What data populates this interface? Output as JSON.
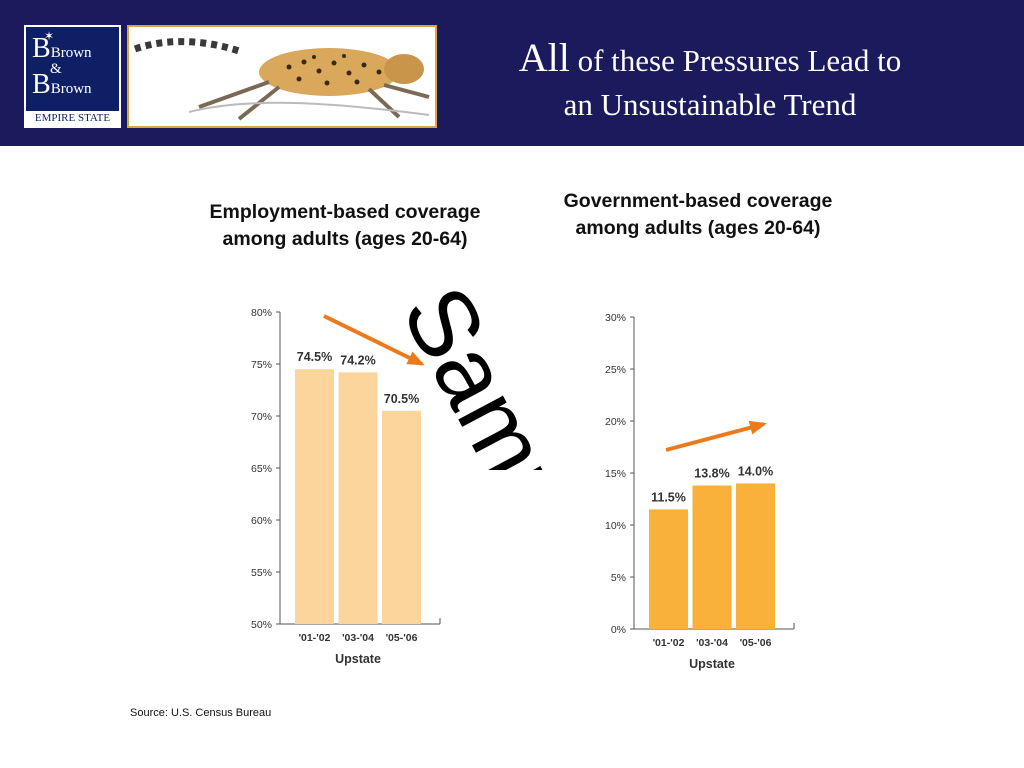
{
  "header": {
    "logo": {
      "line1": "Brown",
      "amp": "&",
      "line2": "Brown",
      "tagline": "EMPIRE STATE"
    },
    "title_part1": "All",
    "title_part2": " of these Pressures Lead to",
    "title_line2": "an Unsustainable Trend"
  },
  "colors": {
    "header_bg": "#1b1a5c",
    "employment_bar": "#fcd59c",
    "government_bar": "#f9b13b",
    "arrow": "#ec7a1c"
  },
  "watermark_text": "Sample",
  "source": "Source: U.S. Census Bureau",
  "chart_data": [
    {
      "type": "bar",
      "title": "Employment-based coverage among adults (ages 20-64)",
      "xlabel": "Upstate",
      "categories": [
        "'01-'02",
        "'03-'04",
        "'05-'06"
      ],
      "values": [
        74.5,
        74.2,
        70.5
      ],
      "data_labels": [
        "74.5%",
        "74.2%",
        "70.5%"
      ],
      "ylim": [
        50,
        80
      ],
      "yticks": [
        50,
        55,
        60,
        65,
        70,
        75,
        80
      ],
      "ytick_labels": [
        "50%",
        "55%",
        "60%",
        "65%",
        "70%",
        "75%",
        "80%"
      ],
      "trend_arrow": "down",
      "grid": false
    },
    {
      "type": "bar",
      "title": "Government-based coverage among adults (ages 20-64)",
      "xlabel": "Upstate",
      "categories": [
        "'01-'02",
        "'03-'04",
        "'05-'06"
      ],
      "values": [
        11.5,
        13.8,
        14.0
      ],
      "data_labels": [
        "11.5%",
        "13.8%",
        "14.0%"
      ],
      "ylim": [
        0,
        30
      ],
      "yticks": [
        0,
        5,
        10,
        15,
        20,
        25,
        30
      ],
      "ytick_labels": [
        "0%",
        "5%",
        "10%",
        "15%",
        "20%",
        "25%",
        "30%"
      ],
      "trend_arrow": "up",
      "grid": false
    }
  ]
}
